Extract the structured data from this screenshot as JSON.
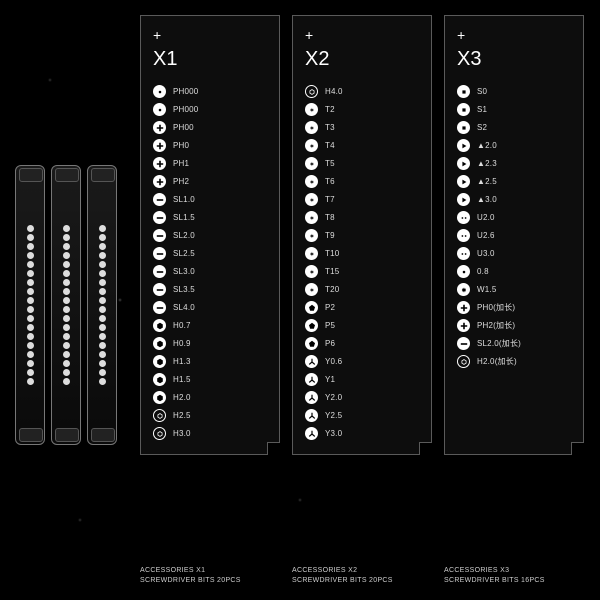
{
  "background_color": "#000000",
  "panel_border_color": "#5a5a5a",
  "panels": [
    {
      "id": "x1",
      "title": "X1",
      "caption_line1": "ACCESSORIES X1",
      "caption_line2": "SCREWDRIVER BITS 20PCS",
      "items": [
        {
          "icon": "dot-solid",
          "label": "PH000"
        },
        {
          "icon": "dot-solid",
          "label": "PH000"
        },
        {
          "icon": "plus-solid",
          "label": "PH00"
        },
        {
          "icon": "plus-solid",
          "label": "PH0"
        },
        {
          "icon": "plus-solid",
          "label": "PH1"
        },
        {
          "icon": "plus-solid",
          "label": "PH2"
        },
        {
          "icon": "minus-solid",
          "label": "SL1.0"
        },
        {
          "icon": "minus-solid",
          "label": "SL1.5"
        },
        {
          "icon": "minus-solid",
          "label": "SL2.0"
        },
        {
          "icon": "minus-solid",
          "label": "SL2.5"
        },
        {
          "icon": "minus-solid",
          "label": "SL3.0"
        },
        {
          "icon": "minus-solid",
          "label": "SL3.5"
        },
        {
          "icon": "minus-solid",
          "label": "SL4.0"
        },
        {
          "icon": "hex-solid",
          "label": "H0.7"
        },
        {
          "icon": "hex-solid",
          "label": "H0.9"
        },
        {
          "icon": "hex-solid",
          "label": "H1.3"
        },
        {
          "icon": "hex-solid",
          "label": "H1.5"
        },
        {
          "icon": "hex-solid",
          "label": "H2.0"
        },
        {
          "icon": "hex-ring",
          "label": "H2.5"
        },
        {
          "icon": "hex-ring",
          "label": "H3.0"
        }
      ]
    },
    {
      "id": "x2",
      "title": "X2",
      "caption_line1": "ACCESSORIES X2",
      "caption_line2": "SCREWDRIVER BITS 20PCS",
      "items": [
        {
          "icon": "hex-ring",
          "label": "H4.0"
        },
        {
          "icon": "torx-solid",
          "label": "T2"
        },
        {
          "icon": "torx-solid",
          "label": "T3"
        },
        {
          "icon": "torx-solid",
          "label": "T4"
        },
        {
          "icon": "torx-solid",
          "label": "T5"
        },
        {
          "icon": "torx-solid",
          "label": "T6"
        },
        {
          "icon": "torx-solid",
          "label": "T7"
        },
        {
          "icon": "torx-solid",
          "label": "T8"
        },
        {
          "icon": "torx-solid",
          "label": "T9"
        },
        {
          "icon": "torx-solid",
          "label": "T10"
        },
        {
          "icon": "torx-solid",
          "label": "T15"
        },
        {
          "icon": "torx-solid",
          "label": "T20"
        },
        {
          "icon": "penta-solid",
          "label": "P2"
        },
        {
          "icon": "penta-solid",
          "label": "P5"
        },
        {
          "icon": "penta-solid",
          "label": "P6"
        },
        {
          "icon": "tri-solid",
          "label": "Y0.6"
        },
        {
          "icon": "tri-solid",
          "label": "Y1"
        },
        {
          "icon": "tri-solid",
          "label": "Y2.0"
        },
        {
          "icon": "tri-solid",
          "label": "Y2.5"
        },
        {
          "icon": "tri-solid",
          "label": "Y3.0"
        }
      ]
    },
    {
      "id": "x3",
      "title": "X3",
      "caption_line1": "ACCESSORIES X3",
      "caption_line2": "SCREWDRIVER BITS 16PCS",
      "items": [
        {
          "icon": "square-solid",
          "label": "S0"
        },
        {
          "icon": "square-solid",
          "label": "S1"
        },
        {
          "icon": "square-solid",
          "label": "S2"
        },
        {
          "icon": "tri-play-solid",
          "label": "▲2.0"
        },
        {
          "icon": "tri-play-solid",
          "label": "▲2.3"
        },
        {
          "icon": "tri-play-solid",
          "label": "▲2.5"
        },
        {
          "icon": "tri-play-solid",
          "label": "▲3.0"
        },
        {
          "icon": "u-solid",
          "label": "U2.0"
        },
        {
          "icon": "u-solid",
          "label": "U2.6"
        },
        {
          "icon": "u-solid",
          "label": "U3.0"
        },
        {
          "icon": "dot-solid",
          "label": "0.8"
        },
        {
          "icon": "star-solid",
          "label": "W1.5"
        },
        {
          "icon": "plus-solid",
          "label": "PH0(加长)"
        },
        {
          "icon": "plus-solid",
          "label": "PH2(加长)"
        },
        {
          "icon": "minus-solid",
          "label": "SL2.0(加长)"
        },
        {
          "icon": "hex-ring",
          "label": "H2.0(加长)"
        }
      ]
    }
  ]
}
